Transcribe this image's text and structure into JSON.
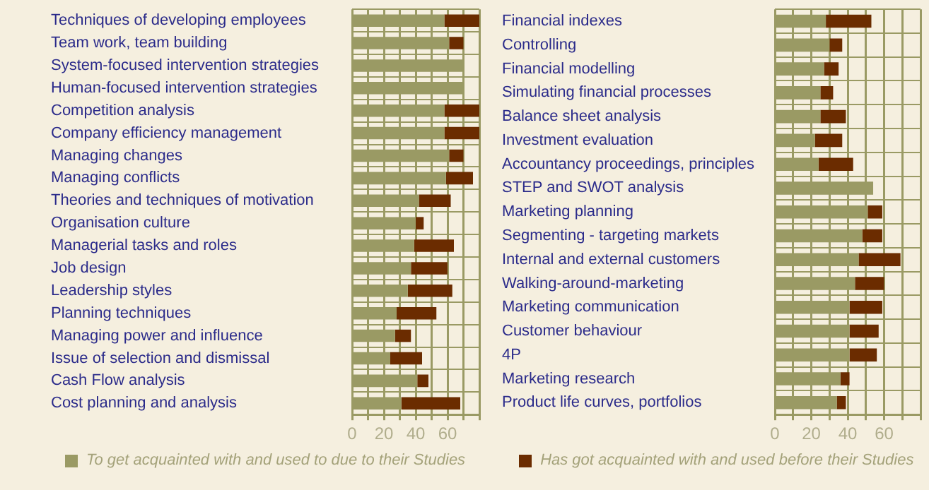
{
  "chart_data": [
    {
      "type": "bar",
      "orientation": "horizontal",
      "stacked": true,
      "grid": true,
      "legend": "bottom",
      "categories": [
        "Techniques of developing employees",
        "Team work, team building",
        "System-focused intervention strategies",
        "Human-focused intervention strategies",
        "Competition analysis",
        "Company efficiency management",
        "Managing changes",
        "Managing conflicts",
        "Theories and techniques of motivation",
        "Organisation culture",
        "Managerial tasks and roles",
        "Job design",
        "Leadership styles",
        "Planning techniques",
        "Managing power and influence",
        "Issue of selection and dismissal",
        "Cash Flow analysis",
        "Cost planning and analysis"
      ],
      "series": [
        {
          "name": "To get acquainted with and used to due to their Studies",
          "color": "#9a9a64",
          "values": [
            58,
            61,
            70,
            70,
            58,
            58,
            61,
            59,
            42,
            40,
            39,
            37,
            35,
            28,
            27,
            24,
            41,
            31
          ]
        },
        {
          "name": "Has got acquainted with and used before their Studies",
          "color": "#6b2c00",
          "values": [
            22,
            9,
            0,
            0,
            22,
            22,
            9,
            17,
            20,
            5,
            25,
            23,
            28,
            25,
            10,
            20,
            7,
            37
          ]
        }
      ],
      "xlim": [
        0,
        80
      ],
      "xticks": [
        0,
        {
          "value": 10,
          "label": null
        },
        20,
        {
          "value": 30,
          "label": null
        },
        40,
        {
          "value": 50,
          "label": null
        },
        60,
        {
          "value": 70,
          "label": null
        },
        {
          "value": 80,
          "label": null
        }
      ]
    },
    {
      "type": "bar",
      "orientation": "horizontal",
      "stacked": true,
      "grid": true,
      "categories": [
        "Financial indexes",
        "Controlling",
        "Financial modelling",
        "Simulating financial processes",
        "Balance sheet analysis",
        "Investment evaluation",
        "Accountancy proceedings, principles",
        "STEP and SWOT analysis",
        "Marketing planning",
        "Segmenting - targeting markets",
        "Internal and external customers",
        "Walking-around-marketing",
        "Marketing communication",
        "Customer behaviour",
        "4P",
        "Marketing research",
        "Product life curves, portfolios"
      ],
      "series": [
        {
          "color": "#9a9a64",
          "values": [
            28,
            30,
            27,
            25,
            25,
            22,
            24,
            54,
            51,
            48,
            46,
            44,
            41,
            41,
            41,
            36,
            34
          ]
        },
        {
          "color": "#6b2c00",
          "values": [
            25,
            7,
            8,
            7,
            14,
            15,
            19,
            0,
            8,
            11,
            23,
            16,
            18,
            16,
            15,
            5,
            5
          ]
        }
      ],
      "xlim": [
        0,
        80
      ],
      "xticks": [
        0,
        {
          "value": 10,
          "label": null
        },
        20,
        {
          "value": 30,
          "label": null
        },
        40,
        {
          "value": 50,
          "label": null
        },
        60,
        {
          "value": 70,
          "label": null
        },
        {
          "value": 80,
          "label": null
        }
      ]
    }
  ]
}
